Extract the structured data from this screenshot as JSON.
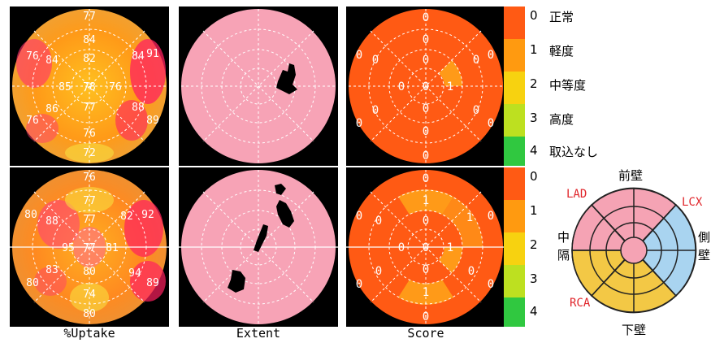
{
  "columns": [
    "%Uptake",
    "Extent",
    "Score"
  ],
  "uptake_top": {
    "outer": [
      "77",
      "91",
      "89",
      "72",
      "76",
      "76"
    ],
    "middle": [
      "84",
      "85",
      "88",
      "76",
      "86",
      "84"
    ],
    "inner": [
      "82",
      "76",
      "77",
      "78"
    ],
    "apex": [
      "78"
    ],
    "ring_top": [
      "77"
    ]
  },
  "uptake_bottom": {
    "outer": [
      "76",
      "92",
      "89",
      "80",
      "80",
      "80"
    ],
    "middle": [
      "77",
      "82",
      "94",
      "74",
      "83",
      "88"
    ],
    "inner": [
      "77",
      "81",
      "80",
      "95"
    ],
    "apex": [
      "77"
    ]
  },
  "score_top": {
    "outer": [
      "0",
      "0",
      "0",
      "0",
      "0",
      "0"
    ],
    "middle": [
      "0",
      "0",
      "0",
      "0",
      "0",
      "0"
    ],
    "inner": [
      "0",
      "1",
      "0",
      "0"
    ],
    "apex": [
      "0"
    ]
  },
  "score_bottom": {
    "outer": [
      "0",
      "0",
      "0",
      "0",
      "0",
      "0"
    ],
    "middle": [
      "1",
      "1",
      "0",
      "1",
      "0",
      "0"
    ],
    "inner": [
      "0",
      "1",
      "0",
      "0"
    ],
    "apex": [
      "0"
    ]
  },
  "scale_top": [
    {
      "n": "0",
      "label": "正常",
      "color": "#ff5a14"
    },
    {
      "n": "1",
      "label": "軽度",
      "color": "#ff9a10"
    },
    {
      "n": "2",
      "label": "中等度",
      "color": "#f7d210"
    },
    {
      "n": "3",
      "label": "高度",
      "color": "#bde020"
    },
    {
      "n": "4",
      "label": "取込なし",
      "color": "#30c840"
    }
  ],
  "scale_bottom": [
    "0",
    "1",
    "2",
    "3",
    "4"
  ],
  "legend": {
    "anterior": "前壁",
    "inferior": "下壁",
    "septal_1": "中",
    "septal_2": "隔",
    "lateral_1": "側",
    "lateral_2": "壁",
    "lad": "LAD",
    "lcx": "LCX",
    "rca": "RCA",
    "colors": {
      "lad": "#f5a3b4",
      "lcx": "#a9d4f0",
      "rca": "#f3c845"
    }
  }
}
